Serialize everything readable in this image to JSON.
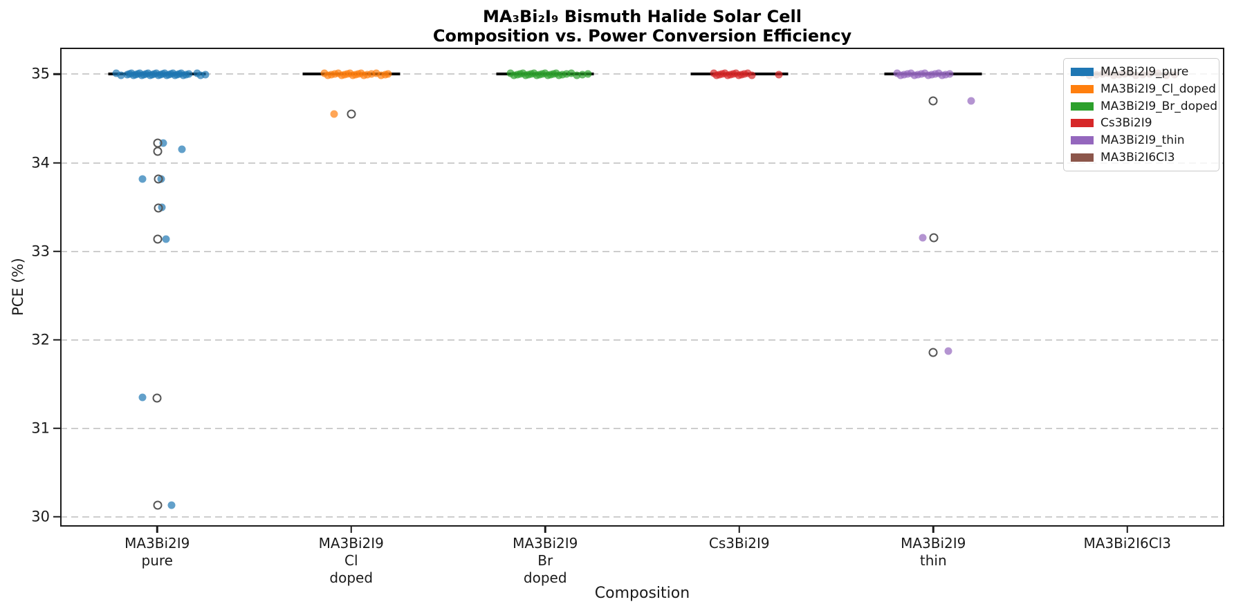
{
  "chart_data": {
    "type": "scatter",
    "title_line1": "MA₃Bi₂I₉ Bismuth Halide Solar Cell",
    "title_line2": "Composition vs. Power Conversion Efficiency",
    "xlabel": "Composition",
    "ylabel": "PCE (%)",
    "ylim": [
      29.89,
      35.3
    ],
    "yticks": [
      35,
      34,
      33,
      32,
      31,
      30
    ],
    "grid": "horizontal dashed",
    "legend_position": "upper right",
    "marker_note": "filled colored dots = jittered samples; gray open circles = reported values; black horizontal line = group mean at 35.0",
    "categories": [
      {
        "lines": [
          "MA3Bi2I9",
          "pure"
        ]
      },
      {
        "lines": [
          "MA3Bi2I9",
          "Cl",
          "doped"
        ]
      },
      {
        "lines": [
          "MA3Bi2I9",
          "Br",
          "doped"
        ]
      },
      {
        "lines": [
          "Cs3Bi2I9"
        ]
      },
      {
        "lines": [
          "MA3Bi2I9",
          "thin"
        ]
      },
      {
        "lines": [
          "MA3Bi2I6Cl3"
        ]
      }
    ],
    "series": [
      {
        "name": "MA3Bi2I9_pure",
        "color": "#1f77b4",
        "category_index": 0,
        "mean_pce": 35.0,
        "cluster_pce": 35.0,
        "cluster_dx": [
          -59,
          -52,
          -43,
          -40,
          -37,
          -34,
          -31,
          -28,
          -25,
          -22,
          -19,
          -16,
          -13,
          -10,
          -7,
          -4,
          -1,
          2,
          5,
          8,
          11,
          14,
          17,
          20,
          23,
          26,
          29,
          32,
          35,
          38,
          42,
          46,
          58,
          63,
          70
        ],
        "outliers_dx_pce": [
          [
            9,
            34.22
          ],
          [
            36,
            34.15
          ],
          [
            -21,
            33.82
          ],
          [
            6,
            33.82
          ],
          [
            7,
            33.5
          ],
          [
            13,
            33.14
          ],
          [
            -21,
            31.35
          ],
          [
            21,
            30.13
          ]
        ],
        "open_markers_dx_pce": [
          [
            1,
            34.22
          ],
          [
            1,
            34.13
          ],
          [
            2,
            33.82
          ],
          [
            2,
            33.49
          ],
          [
            1,
            33.14
          ],
          [
            0,
            31.34
          ],
          [
            1,
            30.13
          ]
        ]
      },
      {
        "name": "MA3Bi2I9_Cl_doped",
        "color": "#ff7f0e",
        "category_index": 1,
        "mean_pce": 35.0,
        "cluster_pce": 35.0,
        "cluster_dx": [
          -39,
          -34,
          -29,
          -24,
          -19,
          -14,
          -10,
          -6,
          -2,
          2,
          6,
          10,
          14,
          18,
          23,
          29,
          36,
          43,
          49,
          53
        ],
        "outliers_dx_pce": [
          [
            -25,
            34.55
          ]
        ],
        "open_markers_dx_pce": [
          [
            0,
            34.55
          ]
        ]
      },
      {
        "name": "MA3Bi2I9_Br_doped",
        "color": "#2ca02c",
        "category_index": 2,
        "mean_pce": 35.0,
        "cluster_pce": 35.0,
        "cluster_dx": [
          -50,
          -45,
          -40,
          -36,
          -32,
          -28,
          -24,
          -20,
          -16,
          -12,
          -8,
          -4,
          0,
          4,
          8,
          12,
          16,
          20,
          25,
          31,
          38,
          46,
          54,
          62
        ],
        "outliers_dx_pce": [],
        "open_markers_dx_pce": []
      },
      {
        "name": "Cs3Bi2I9",
        "color": "#d62728",
        "category_index": 3,
        "mean_pce": 35.0,
        "cluster_pce": 35.0,
        "cluster_dx": [
          -37,
          -33,
          -29,
          -25,
          -21,
          -17,
          -13,
          -9,
          -5,
          -1,
          3,
          7,
          12,
          18,
          57
        ],
        "outliers_dx_pce": [],
        "open_markers_dx_pce": []
      },
      {
        "name": "MA3Bi2I9_thin",
        "color": "#9467bd",
        "category_index": 4,
        "mean_pce": 35.0,
        "cluster_pce": 35.0,
        "cluster_dx": [
          -52,
          -47,
          -42,
          -37,
          -32,
          -27,
          -22,
          -17,
          -12,
          -7,
          -2,
          3,
          8,
          13,
          18,
          24
        ],
        "outliers_dx_pce": [
          [
            55,
            34.7
          ],
          [
            -15,
            33.15
          ],
          [
            22,
            31.87
          ]
        ],
        "open_markers_dx_pce": [
          [
            0,
            34.7
          ],
          [
            1,
            33.15
          ],
          [
            0,
            31.86
          ]
        ]
      },
      {
        "name": "MA3Bi2I6Cl3",
        "color": "#8c564b",
        "category_index": 5,
        "mean_pce": 35.0,
        "cluster_pce": 35.0,
        "cluster_dx": [
          -65,
          -55,
          -45,
          -36,
          -28,
          -20,
          -12,
          -4,
          4,
          12,
          22,
          32,
          44,
          56,
          68
        ],
        "outliers_dx_pce": [],
        "open_markers_dx_pce": []
      }
    ]
  }
}
